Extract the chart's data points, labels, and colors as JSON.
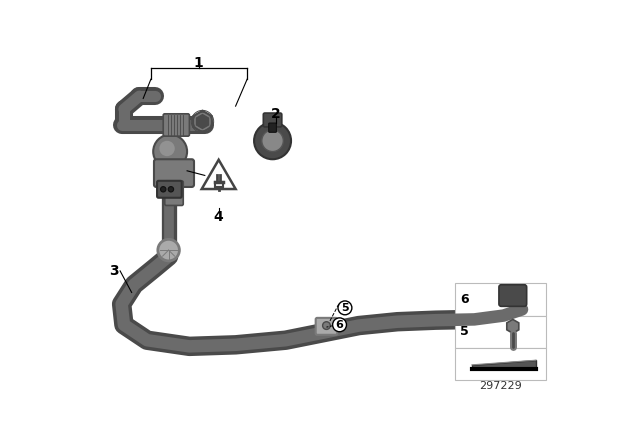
{
  "bg_color": "#ffffff",
  "part_number": "297229",
  "tube_color": "#6b6b6b",
  "tube_lw": 11,
  "tube_highlight": "#9a9a9a",
  "part_dark": "#4a4a4a",
  "part_mid": "#7a7a7a",
  "part_light": "#aaaaaa",
  "label_font": 10
}
